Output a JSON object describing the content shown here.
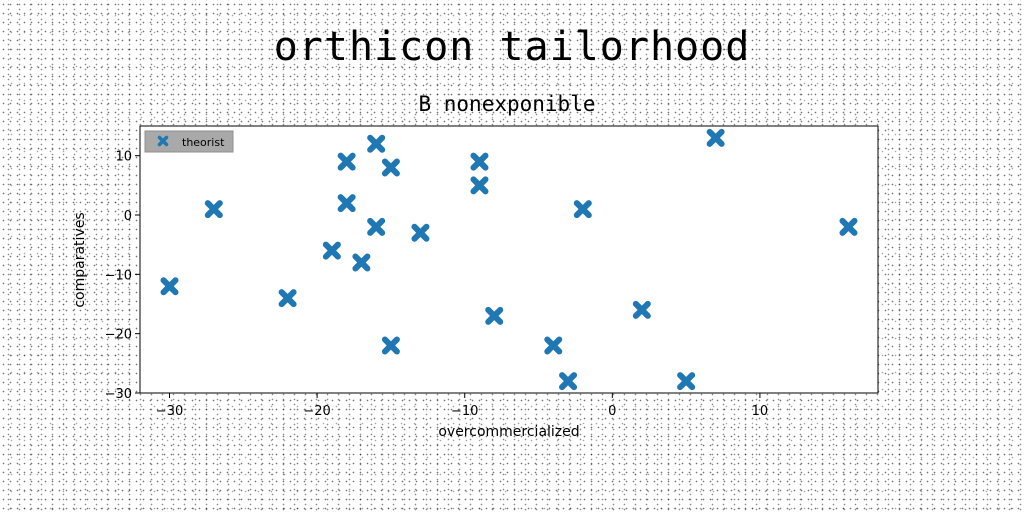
{
  "figure": {
    "suptitle": "orthicon tailorhood"
  },
  "chart_data": {
    "type": "scatter",
    "title": "B nonexponible",
    "xlabel": "overcommercialized",
    "ylabel": "comparatives",
    "xlim": [
      -32,
      18
    ],
    "ylim": [
      -30,
      15
    ],
    "xticks": [
      -30,
      -20,
      -10,
      0,
      10
    ],
    "yticks": [
      -30,
      -20,
      -10,
      0,
      10
    ],
    "grid": false,
    "legend": "top-left",
    "marker": "X",
    "series": [
      {
        "name": "theorist",
        "color": "#1f77b4",
        "points": [
          [
            -30,
            -12
          ],
          [
            -27,
            1
          ],
          [
            -22,
            -14
          ],
          [
            -19,
            -6
          ],
          [
            -18,
            9
          ],
          [
            -18,
            2
          ],
          [
            -17,
            -8
          ],
          [
            -16,
            12
          ],
          [
            -16,
            -2
          ],
          [
            -15,
            8
          ],
          [
            -15,
            -22
          ],
          [
            -13,
            -3
          ],
          [
            -9,
            9
          ],
          [
            -9,
            5
          ],
          [
            -8,
            -17
          ],
          [
            -4,
            -22
          ],
          [
            -3,
            -28
          ],
          [
            -2,
            1
          ],
          [
            2,
            -16
          ],
          [
            5,
            -28
          ],
          [
            7,
            13
          ],
          [
            16,
            -2
          ]
        ]
      }
    ]
  }
}
